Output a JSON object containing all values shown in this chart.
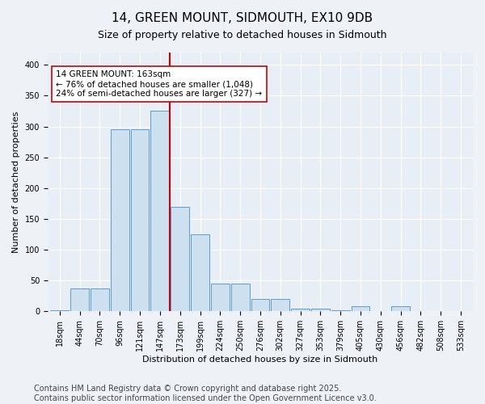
{
  "title": "14, GREEN MOUNT, SIDMOUTH, EX10 9DB",
  "subtitle": "Size of property relative to detached houses in Sidmouth",
  "xlabel": "Distribution of detached houses by size in Sidmouth",
  "ylabel": "Number of detached properties",
  "bins": [
    "18sqm",
    "44sqm",
    "70sqm",
    "96sqm",
    "121sqm",
    "147sqm",
    "173sqm",
    "199sqm",
    "224sqm",
    "250sqm",
    "276sqm",
    "302sqm",
    "327sqm",
    "353sqm",
    "379sqm",
    "405sqm",
    "430sqm",
    "456sqm",
    "482sqm",
    "508sqm",
    "533sqm"
  ],
  "values": [
    2,
    37,
    37,
    295,
    295,
    325,
    170,
    125,
    45,
    45,
    20,
    20,
    5,
    5,
    2,
    8,
    0,
    8,
    0,
    1,
    0
  ],
  "bar_color": "#cce0f0",
  "bar_edge_color": "#5b9bd5",
  "vline_x_index": 6,
  "vline_color": "#cc0000",
  "annotation_text": "14 GREEN MOUNT: 163sqm\n← 76% of detached houses are smaller (1,048)\n24% of semi-detached houses are larger (327) →",
  "annotation_box_color": "#ffffff",
  "annotation_box_edge": "#cc0000",
  "footer": "Contains HM Land Registry data © Crown copyright and database right 2025.\nContains public sector information licensed under the Open Government Licence v3.0.",
  "ylim": [
    0,
    420
  ],
  "yticks": [
    0,
    50,
    100,
    150,
    200,
    250,
    300,
    350,
    400
  ],
  "bg_color": "#e8eef5",
  "fig_bg_color": "#eef2f7",
  "title_fontsize": 11,
  "subtitle_fontsize": 9,
  "footer_fontsize": 7,
  "ann_fontsize": 7.5,
  "ylabel_fontsize": 8,
  "xlabel_fontsize": 8,
  "tick_fontsize": 7
}
